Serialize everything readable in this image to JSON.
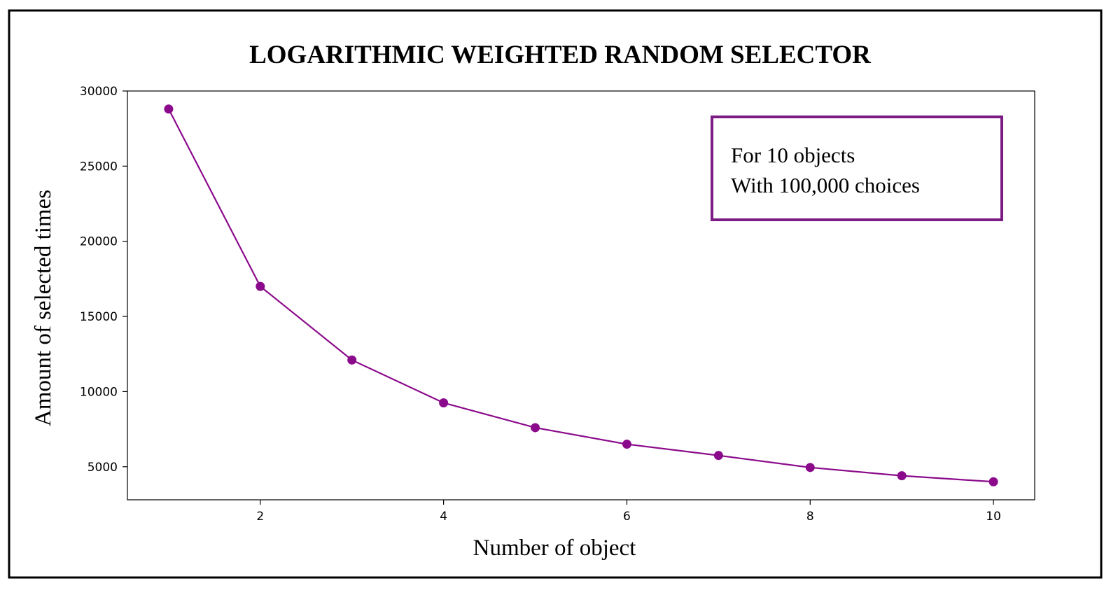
{
  "chart_data": {
    "type": "line",
    "title": "LOGARITHMIC WEIGHTED RANDOM SELECTOR",
    "xlabel": "Number of object",
    "ylabel": "Amount of selected times",
    "x": [
      1,
      2,
      3,
      4,
      5,
      6,
      7,
      8,
      9,
      10
    ],
    "series": [
      {
        "values": [
          28800,
          17000,
          12100,
          9250,
          7600,
          6500,
          5750,
          4950,
          4400,
          4000
        ],
        "color": "#8b0a8b"
      }
    ],
    "xticks": [
      2,
      4,
      6,
      8,
      10
    ],
    "xtick_labels": [
      "2",
      "4",
      "6",
      "8",
      "10"
    ],
    "yticks": [
      5000,
      10000,
      15000,
      20000,
      25000,
      30000
    ],
    "ytick_labels": [
      "5000",
      "10000",
      "15000",
      "20000",
      "25000",
      "30000"
    ],
    "xlim": [
      0.55,
      10.45
    ],
    "ylim": [
      2800,
      30000
    ],
    "grid": false,
    "annotation": {
      "lines": [
        "For 10 objects",
        "With 100,000 choices"
      ],
      "border_color": "#7b1c84",
      "placement": "top-right"
    }
  }
}
